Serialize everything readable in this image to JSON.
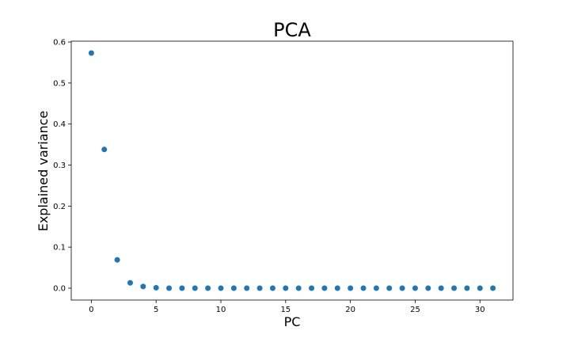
{
  "chart_data": {
    "type": "scatter",
    "title": "PCA",
    "xlabel": "PC",
    "ylabel": "Explained variance",
    "xlim": [
      -1.55,
      32.55
    ],
    "ylim": [
      -0.029,
      0.602
    ],
    "xticks": [
      0,
      5,
      10,
      15,
      20,
      25,
      30
    ],
    "xtick_labels": [
      "0",
      "5",
      "10",
      "15",
      "20",
      "25",
      "30"
    ],
    "yticks": [
      0.0,
      0.1,
      0.2,
      0.3,
      0.4,
      0.5,
      0.6
    ],
    "ytick_labels": [
      "0.0",
      "0.1",
      "0.2",
      "0.3",
      "0.4",
      "0.5",
      "0.6"
    ],
    "grid": false,
    "marker_color": "#1f77b4",
    "x": [
      0,
      1,
      2,
      3,
      4,
      5,
      6,
      7,
      8,
      9,
      10,
      11,
      12,
      13,
      14,
      15,
      16,
      17,
      18,
      19,
      20,
      21,
      22,
      23,
      24,
      25,
      26,
      27,
      28,
      29,
      30,
      31
    ],
    "y": [
      0.573,
      0.338,
      0.069,
      0.013,
      0.004,
      0.001,
      0.0,
      0.0,
      0.0,
      0.0,
      0.0,
      0.0,
      0.0,
      0.0,
      0.0,
      0.0,
      0.0,
      0.0,
      0.0,
      0.0,
      0.0,
      0.0,
      0.0,
      0.0,
      0.0,
      0.0,
      0.0,
      0.0,
      0.0,
      0.0,
      0.0,
      0.0
    ]
  }
}
